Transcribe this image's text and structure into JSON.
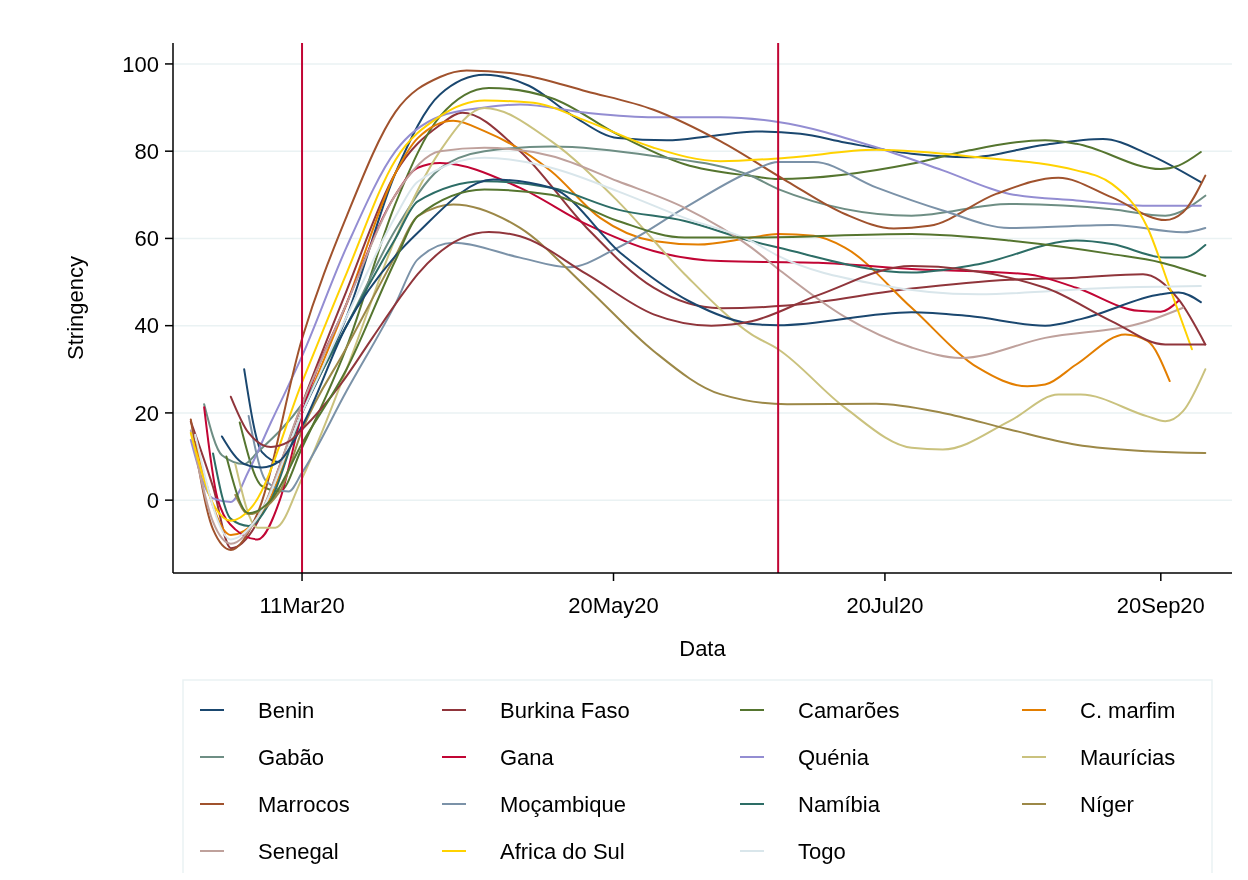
{
  "chart_data": {
    "type": "line",
    "xlabel": "Data",
    "ylabel": "Stringency",
    "xlim": [
      "2020-02-11",
      "2020-10-06"
    ],
    "xticks": [
      {
        "value": "2020-03-11",
        "label": "11Mar20"
      },
      {
        "value": "2020-05-20",
        "label": "20May20"
      },
      {
        "value": "2020-07-20",
        "label": "20Jul20"
      },
      {
        "value": "2020-09-20",
        "label": "20Sep20"
      }
    ],
    "ylim": [
      -16.7,
      104.8
    ],
    "yticks": [
      0,
      20,
      40,
      60,
      80,
      100
    ],
    "grid": "y",
    "legend": "bottom",
    "marker": "none",
    "line_style": "solid",
    "ref_lines": [
      {
        "axis": "x",
        "value": "2020-03-11",
        "color": "#c10534"
      },
      {
        "axis": "x",
        "value": "2020-06-26",
        "color": "#c10534"
      }
    ],
    "series": [
      {
        "name": "Benin",
        "color": "#1a476f",
        "x": [
          "2020-02-27",
          "2020-03-02",
          "2020-03-06",
          "2020-03-11",
          "2020-03-21",
          "2020-04-01",
          "2020-04-11",
          "2020-04-21",
          "2020-05-01",
          "2020-05-11",
          "2020-05-21",
          "2020-06-01",
          "2020-06-11",
          "2020-06-21",
          "2020-07-01",
          "2020-07-11",
          "2020-07-26",
          "2020-08-08",
          "2020-08-25",
          "2020-09-07",
          "2020-09-17",
          "2020-09-29"
        ],
        "values": [
          30,
          11,
          8.7,
          20,
          42,
          75,
          93,
          97.5,
          95,
          88,
          83,
          82.5,
          83.5,
          84.5,
          84,
          82,
          79.4,
          78.6,
          81.5,
          82.8,
          79.4,
          72.9
        ]
      },
      {
        "name": "Burkina Faso",
        "color": "#90353b",
        "x": [
          "2020-02-15",
          "2020-02-20",
          "2020-02-24",
          "2020-03-01",
          "2020-03-06",
          "2020-03-11",
          "2020-03-21",
          "2020-04-01",
          "2020-04-11",
          "2020-04-16",
          "2020-04-29",
          "2020-05-14",
          "2020-05-29",
          "2020-06-13",
          "2020-06-28",
          "2020-07-26",
          "2020-08-17",
          "2020-09-01",
          "2020-09-16",
          "2020-09-24",
          "2020-09-30"
        ],
        "values": [
          18,
          3,
          -11,
          -5,
          8,
          22,
          48,
          75,
          86,
          88.8,
          80,
          62.4,
          48.7,
          44,
          44.6,
          48.5,
          50.5,
          51,
          51.8,
          46,
          35.7
        ]
      },
      {
        "name": "Camarões",
        "color": "#55752f",
        "x": [
          "2020-02-26",
          "2020-03-02",
          "2020-03-06",
          "2020-03-11",
          "2020-03-21",
          "2020-04-01",
          "2020-04-11",
          "2020-04-22",
          "2020-05-06",
          "2020-05-21",
          "2020-06-05",
          "2020-06-20",
          "2020-06-26",
          "2020-07-26",
          "2020-08-08",
          "2020-08-25",
          "2020-09-01",
          "2020-09-20",
          "2020-09-24",
          "2020-09-29"
        ],
        "values": [
          17.8,
          3.2,
          2,
          12,
          35,
          68,
          88,
          94.5,
          92.2,
          83.8,
          77,
          74.3,
          73.6,
          77.1,
          80.2,
          82.5,
          81.7,
          75.9,
          76.7,
          79.8
        ]
      },
      {
        "name": "C. marfim",
        "color": "#e37e00",
        "x": [
          "2020-02-16",
          "2020-02-24",
          "2020-03-02",
          "2020-03-11",
          "2020-03-21",
          "2020-04-01",
          "2020-04-06",
          "2020-04-14",
          "2020-04-21",
          "2020-05-06",
          "2020-05-17",
          "2020-05-29",
          "2020-06-08",
          "2020-06-20",
          "2020-06-26",
          "2020-07-04",
          "2020-07-11",
          "2020-07-26",
          "2020-08-10",
          "2020-08-21",
          "2020-08-25",
          "2020-09-01",
          "2020-09-12",
          "2020-09-17",
          "2020-09-22"
        ],
        "values": [
          13.4,
          -8,
          -3,
          20,
          45,
          75,
          83,
          87,
          84.6,
          75.4,
          64.7,
          59.4,
          58.6,
          60.2,
          61,
          60.6,
          57.9,
          44.1,
          30.3,
          26.1,
          26.5,
          31.1,
          38,
          36.5,
          27.3
        ]
      },
      {
        "name": "Gabão",
        "color": "#6e8e84",
        "x": [
          "2020-02-18",
          "2020-02-22",
          "2020-02-27",
          "2020-03-01",
          "2020-03-11",
          "2020-03-21",
          "2020-04-01",
          "2020-04-11",
          "2020-04-21",
          "2020-05-06",
          "2020-05-29",
          "2020-06-20",
          "2020-06-26",
          "2020-07-26",
          "2020-08-17",
          "2020-09-09",
          "2020-09-21",
          "2020-09-30"
        ],
        "values": [
          22,
          10.3,
          8.3,
          11,
          22,
          40,
          62,
          76,
          80,
          81.1,
          78.9,
          74.3,
          71.3,
          65.2,
          67.9,
          66.7,
          65.2,
          69.8
        ]
      },
      {
        "name": "Gana",
        "color": "#c10534",
        "x": [
          "2020-02-18",
          "2020-02-21",
          "2020-02-25",
          "2020-03-01",
          "2020-03-06",
          "2020-03-11",
          "2020-03-21",
          "2020-04-01",
          "2020-04-06",
          "2020-04-11",
          "2020-04-29",
          "2020-05-14",
          "2020-05-29",
          "2020-06-13",
          "2020-07-05",
          "2020-07-26",
          "2020-08-21",
          "2020-09-01",
          "2020-09-15",
          "2020-09-20",
          "2020-09-24"
        ],
        "values": [
          21.3,
          0.4,
          -6.7,
          -9,
          0,
          20,
          45,
          70,
          76.2,
          77.3,
          71.6,
          63.2,
          57.1,
          54.8,
          54.4,
          53,
          51.8,
          48.7,
          43.4,
          43.2,
          45.7
        ]
      },
      {
        "name": "Quénia",
        "color": "#938dd2",
        "x": [
          "2020-02-15",
          "2020-02-20",
          "2020-02-24",
          "2020-02-28",
          "2020-03-04",
          "2020-03-11",
          "2020-03-21",
          "2020-04-01",
          "2020-04-11",
          "2020-04-21",
          "2020-04-29",
          "2020-05-14",
          "2020-05-29",
          "2020-06-13",
          "2020-06-26",
          "2020-07-18",
          "2020-08-02",
          "2020-08-17",
          "2020-09-01",
          "2020-09-17",
          "2020-09-29"
        ],
        "values": [
          13.8,
          0.4,
          -0.4,
          6.7,
          17.8,
          33,
          58,
          80,
          88,
          90,
          90.7,
          88.8,
          87.8,
          87.8,
          86.7,
          80.9,
          75.6,
          70.2,
          68.7,
          67.5,
          67.5
        ]
      },
      {
        "name": "Maurícias",
        "color": "#cac27e",
        "x": [
          "2020-02-25",
          "2020-03-01",
          "2020-03-05",
          "2020-03-11",
          "2020-03-21",
          "2020-04-01",
          "2020-04-11",
          "2020-04-21",
          "2020-05-06",
          "2020-05-21",
          "2020-06-05",
          "2020-06-20",
          "2020-06-26",
          "2020-07-11",
          "2020-07-26",
          "2020-08-02",
          "2020-08-17",
          "2020-08-28",
          "2020-09-02",
          "2020-09-17",
          "2020-09-21",
          "2020-09-25",
          "2020-09-30"
        ],
        "values": [
          8.3,
          -6.3,
          -6.3,
          5,
          30,
          60,
          80,
          89.9,
          82.3,
          68.5,
          51.8,
          38,
          34.6,
          21.2,
          12,
          11.6,
          18.1,
          24.2,
          24.2,
          19.2,
          18.1,
          20.4,
          30
        ]
      },
      {
        "name": "Marrocos",
        "color": "#a0522d",
        "x": [
          "2020-02-15",
          "2020-02-20",
          "2020-02-24",
          "2020-03-01",
          "2020-03-11",
          "2020-03-21",
          "2020-04-01",
          "2020-04-11",
          "2020-04-17",
          "2020-04-29",
          "2020-05-14",
          "2020-05-29",
          "2020-06-13",
          "2020-06-28",
          "2020-07-11",
          "2020-07-22",
          "2020-07-30",
          "2020-08-14",
          "2020-08-28",
          "2020-09-09",
          "2020-09-21",
          "2020-09-25",
          "2020-09-30"
        ],
        "values": [
          18.5,
          -6.7,
          -11.4,
          -3,
          37,
          65,
          89,
          97,
          98.5,
          97.6,
          93.7,
          89.5,
          82.3,
          73.1,
          65.6,
          62.3,
          62.9,
          70.2,
          73.9,
          69.4,
          64.2,
          66,
          74.4
        ]
      },
      {
        "name": "Moçambique",
        "color": "#7b92a8",
        "x": [
          "2020-02-28",
          "2020-03-03",
          "2020-03-08",
          "2020-03-11",
          "2020-03-21",
          "2020-04-01",
          "2020-04-06",
          "2020-04-14",
          "2020-04-29",
          "2020-05-10",
          "2020-05-21",
          "2020-06-05",
          "2020-06-20",
          "2020-06-26",
          "2020-07-04",
          "2020-07-18",
          "2020-08-02",
          "2020-08-17",
          "2020-09-09",
          "2020-09-25",
          "2020-09-30"
        ],
        "values": [
          19.3,
          4.3,
          2,
          6.3,
          25,
          45,
          55.2,
          59,
          55.6,
          53.4,
          57.9,
          67,
          75.4,
          77.5,
          77.5,
          71.7,
          66.4,
          62.4,
          63.1,
          61.4,
          62.4
        ]
      },
      {
        "name": "Namíbia",
        "color": "#2d6d66",
        "x": [
          "2020-02-20",
          "2020-02-24",
          "2020-02-28",
          "2020-03-04",
          "2020-03-11",
          "2020-03-21",
          "2020-04-01",
          "2020-04-06",
          "2020-04-21",
          "2020-05-06",
          "2020-05-21",
          "2020-06-05",
          "2020-06-20",
          "2020-06-26",
          "2020-07-26",
          "2020-08-10",
          "2020-09-01",
          "2020-09-09",
          "2020-09-21",
          "2020-09-25",
          "2020-09-30"
        ],
        "values": [
          10.7,
          -4.3,
          -5.9,
          0,
          20,
          40,
          60,
          68.5,
          73.1,
          71.6,
          66.6,
          64,
          59.4,
          57.9,
          52.2,
          54.1,
          59.5,
          58.7,
          55.6,
          55.6,
          58.5
        ]
      },
      {
        "name": "Níger",
        "color": "#9c8847",
        "x": [
          "2020-02-25",
          "2020-02-28",
          "2020-03-06",
          "2020-03-11",
          "2020-03-21",
          "2020-04-01",
          "2020-04-06",
          "2020-04-14",
          "2020-04-29",
          "2020-05-14",
          "2020-05-29",
          "2020-06-13",
          "2020-06-28",
          "2020-07-18",
          "2020-08-02",
          "2020-08-17",
          "2020-09-01",
          "2020-09-17",
          "2020-09-30"
        ],
        "values": [
          1.2,
          -3.2,
          2,
          16,
          35,
          56,
          65.1,
          67.8,
          62.4,
          48.7,
          34.2,
          24.3,
          22,
          22.1,
          20,
          16.2,
          12.7,
          11.2,
          10.8
        ]
      },
      {
        "name": "Senegal",
        "color": "#bfa19c",
        "x": [
          "2020-02-15",
          "2020-02-20",
          "2020-02-24",
          "2020-03-01",
          "2020-03-11",
          "2020-03-21",
          "2020-04-01",
          "2020-04-11",
          "2020-04-21",
          "2020-05-06",
          "2020-05-21",
          "2020-06-05",
          "2020-06-20",
          "2020-06-26",
          "2020-07-11",
          "2020-07-26",
          "2020-08-06",
          "2020-08-25",
          "2020-09-17",
          "2020-09-25"
        ],
        "values": [
          16,
          -5,
          -10,
          -4,
          22,
          45,
          70,
          80,
          80.8,
          78.9,
          73.1,
          67,
          57.9,
          53,
          42,
          35,
          32.6,
          37.2,
          41,
          44.1
        ]
      },
      {
        "name": "Africa do Sul",
        "color": "#ffd200",
        "x": [
          "2020-02-15",
          "2020-02-20",
          "2020-02-24",
          "2020-02-29",
          "2020-03-11",
          "2020-03-21",
          "2020-04-01",
          "2020-04-11",
          "2020-04-21",
          "2020-05-02",
          "2020-05-14",
          "2020-05-29",
          "2020-06-13",
          "2020-06-28",
          "2020-07-18",
          "2020-08-10",
          "2020-09-01",
          "2020-09-09",
          "2020-09-17",
          "2020-09-22",
          "2020-09-27"
        ],
        "values": [
          15.4,
          -0.8,
          -4.7,
          -1.2,
          27,
          52,
          78,
          88,
          91.6,
          91.1,
          86.9,
          80.8,
          77.7,
          78.5,
          80.3,
          78.6,
          75.6,
          72.5,
          62.5,
          48.7,
          34.6
        ]
      },
      {
        "name": "Togo",
        "color": "#d9e6eb",
        "x": [
          "2020-02-16",
          "2020-02-24",
          "2020-03-01",
          "2020-03-11",
          "2020-03-21",
          "2020-04-01",
          "2020-04-06",
          "2020-04-21",
          "2020-05-06",
          "2020-05-21",
          "2020-06-05",
          "2020-06-20",
          "2020-06-26",
          "2020-07-18",
          "2020-08-10",
          "2020-09-09",
          "2020-09-29"
        ],
        "values": [
          15,
          -9,
          -4,
          20,
          42,
          65,
          73,
          78.5,
          76.2,
          70.8,
          64.7,
          59.4,
          56,
          49.5,
          47.2,
          48.7,
          49.1
        ]
      },
      {
        "color": "#1a476f",
        "x": [
          "2020-02-22",
          "2020-02-27",
          "2020-03-02",
          "2020-03-06",
          "2020-03-11",
          "2020-03-21",
          "2020-04-01",
          "2020-04-06",
          "2020-04-23",
          "2020-05-06",
          "2020-05-22",
          "2020-06-06",
          "2020-06-21",
          "2020-06-26",
          "2020-07-26",
          "2020-08-08",
          "2020-08-25",
          "2020-09-02",
          "2020-09-20",
          "2020-09-24",
          "2020-09-29"
        ],
        "values": [
          14.6,
          8.3,
          7.5,
          9,
          17,
          40,
          56,
          61.3,
          73.5,
          71.6,
          56.3,
          45.6,
          40.3,
          40.1,
          43.1,
          42.2,
          40,
          41.5,
          47.2,
          47.6,
          45.4
        ]
      },
      {
        "color": "#90353b",
        "x": [
          "2020-02-24",
          "2020-02-28",
          "2020-03-04",
          "2020-03-08",
          "2020-03-11",
          "2020-03-20",
          "2020-03-27",
          "2020-04-03",
          "2020-04-06",
          "2020-04-22",
          "2020-04-29",
          "2020-05-14",
          "2020-05-29",
          "2020-06-11",
          "2020-06-20",
          "2020-07-05",
          "2020-07-26",
          "2020-08-25",
          "2020-09-09",
          "2020-09-21",
          "2020-09-30"
        ],
        "values": [
          23.7,
          15.4,
          12.2,
          13.4,
          16.2,
          27,
          37.5,
          47.8,
          51.8,
          61.5,
          60.5,
          51.8,
          42.6,
          40,
          41,
          47,
          53.7,
          48.7,
          41,
          35.7,
          35.7
        ]
      },
      {
        "color": "#55752f",
        "x": [
          "2020-02-23",
          "2020-02-28",
          "2020-03-04",
          "2020-03-11",
          "2020-03-21",
          "2020-04-01",
          "2020-04-06",
          "2020-04-21",
          "2020-05-06",
          "2020-05-21",
          "2020-06-05",
          "2020-06-20",
          "2020-07-26",
          "2020-08-17",
          "2020-09-09",
          "2020-09-20",
          "2020-09-30"
        ],
        "values": [
          10,
          -3,
          0,
          13,
          30,
          55,
          65.1,
          71.2,
          70,
          64,
          60.2,
          60.2,
          61,
          59.5,
          56.4,
          54.5,
          51.4
        ]
      }
    ]
  }
}
